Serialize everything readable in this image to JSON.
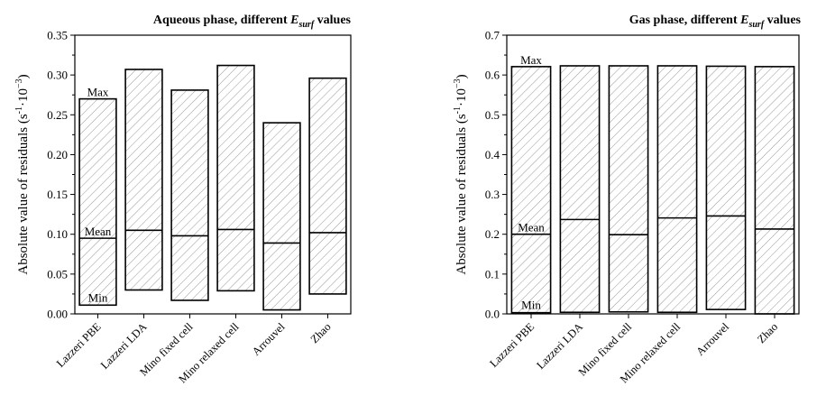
{
  "chart_data": [
    {
      "type": "bar",
      "title_main": "Aqueous phase, different ",
      "title_sym": "E",
      "title_sub": "surf",
      "title_end": " values",
      "ylabel_main": "Absolute value of residuals (s",
      "ylabel_sup1": "-1",
      "ylabel_mid": "·10",
      "ylabel_sup2": "−3",
      "ylabel_end": ")",
      "ylim": [
        0,
        0.35
      ],
      "yticks": [
        "0.00",
        "0.05",
        "0.10",
        "0.15",
        "0.20",
        "0.25",
        "0.30",
        "0.35"
      ],
      "categories": [
        "Lazzeri PBE",
        "Lazzeri LDA",
        "Mino fixed cell",
        "Mino relaxed cell",
        "Arrouvel",
        "Zhao"
      ],
      "series": [
        {
          "name": "Max",
          "values": [
            0.27,
            0.307,
            0.281,
            0.312,
            0.24,
            0.296
          ]
        },
        {
          "name": "Mean",
          "values": [
            0.095,
            0.105,
            0.098,
            0.106,
            0.089,
            0.102
          ]
        },
        {
          "name": "Min",
          "values": [
            0.011,
            0.03,
            0.017,
            0.029,
            0.005,
            0.025
          ]
        }
      ],
      "annotations": {
        "max": "Max",
        "mean": "Mean",
        "min": "Min"
      }
    },
    {
      "type": "bar",
      "title_main": "Gas phase, different ",
      "title_sym": "E",
      "title_sub": "surf",
      "title_end": " values",
      "ylabel_main": "Absolute value of residuals (s",
      "ylabel_sup1": "-1",
      "ylabel_mid": "·10",
      "ylabel_sup2": "−3",
      "ylabel_end": ")",
      "ylim": [
        0,
        0.7
      ],
      "yticks": [
        "0.0",
        "0.1",
        "0.2",
        "0.3",
        "0.4",
        "0.5",
        "0.6",
        "0.7"
      ],
      "categories": [
        "Lazzeri PBE",
        "Lazzeri LDA",
        "Mino fixed cell",
        "Mino relaxed cell",
        "Arrouvel",
        "Zhao"
      ],
      "series": [
        {
          "name": "Max",
          "values": [
            0.621,
            0.623,
            0.623,
            0.623,
            0.622,
            0.621
          ]
        },
        {
          "name": "Mean",
          "values": [
            0.2,
            0.237,
            0.199,
            0.241,
            0.246,
            0.213
          ]
        },
        {
          "name": "Min",
          "values": [
            0.003,
            0.004,
            0.005,
            0.004,
            0.011,
            0.0
          ]
        }
      ],
      "annotations": {
        "max": "Max",
        "mean": "Mean",
        "min": "Min"
      }
    }
  ]
}
